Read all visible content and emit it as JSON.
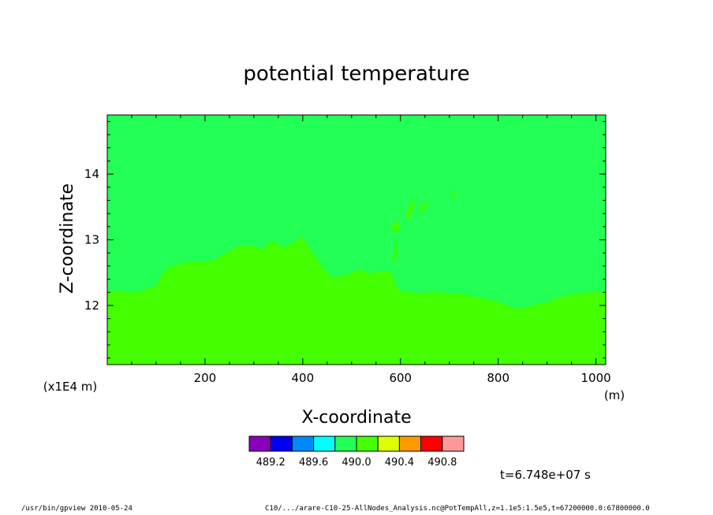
{
  "chart_data": {
    "type": "heatmap",
    "title": "potential temperature",
    "xlabel": "X-coordinate",
    "ylabel": "Z-coordinate",
    "x_unit": "(m)",
    "y_scale_label": "(x1E4 m)",
    "xlim": [
      0,
      1020
    ],
    "ylim": [
      11.1,
      14.9
    ],
    "x_ticks": [
      200,
      400,
      600,
      800,
      1000
    ],
    "x_tick_labels": [
      "200",
      "400",
      "600",
      "800",
      "1000"
    ],
    "y_ticks": [
      12,
      13,
      14
    ],
    "y_tick_labels": [
      "12",
      "13",
      "14"
    ],
    "field": {
      "upper_value_band": [
        489.8,
        490.0
      ],
      "lower_value_band": [
        490.0,
        490.2
      ],
      "upper_color": "#22ff55",
      "lower_color": "#44ff00",
      "boundary": {
        "x": [
          0,
          20,
          40,
          60,
          80,
          100,
          110,
          120,
          140,
          160,
          180,
          200,
          220,
          240,
          260,
          280,
          300,
          320,
          330,
          340,
          360,
          380,
          400,
          410,
          420,
          440,
          460,
          480,
          500,
          520,
          540,
          560,
          580,
          590,
          600,
          620,
          640,
          660,
          680,
          700,
          720,
          740,
          760,
          780,
          800,
          820,
          840,
          860,
          880,
          900,
          920,
          940,
          960,
          980,
          1000,
          1020
        ],
        "z": [
          12.22,
          12.22,
          12.2,
          12.2,
          12.25,
          12.3,
          12.45,
          12.55,
          12.62,
          12.65,
          12.68,
          12.66,
          12.7,
          12.78,
          12.88,
          12.92,
          12.9,
          12.85,
          12.95,
          12.98,
          12.88,
          12.95,
          13.05,
          12.92,
          12.8,
          12.6,
          12.42,
          12.45,
          12.5,
          12.55,
          12.48,
          12.52,
          12.52,
          12.3,
          12.22,
          12.2,
          12.18,
          12.2,
          12.2,
          12.18,
          12.18,
          12.15,
          12.12,
          12.1,
          12.05,
          12.0,
          11.95,
          11.98,
          12.02,
          12.05,
          12.12,
          12.15,
          12.18,
          12.2,
          12.2,
          12.22
        ]
      },
      "patches": [
        {
          "x": [
            580,
            595,
            600,
            588,
            580
          ],
          "z": [
            13.2,
            13.3,
            13.15,
            13.1,
            13.2
          ]
        },
        {
          "x": [
            610,
            622,
            630,
            618,
            610
          ],
          "z": [
            13.35,
            13.6,
            13.55,
            13.3,
            13.35
          ]
        },
        {
          "x": [
            640,
            650,
            655,
            645,
            640
          ],
          "z": [
            13.45,
            13.6,
            13.55,
            13.4,
            13.45
          ]
        },
        {
          "x": [
            585,
            592,
            595,
            588,
            585
          ],
          "z": [
            12.7,
            12.95,
            12.85,
            12.65,
            12.7
          ]
        },
        {
          "x": [
            705,
            710,
            712,
            707,
            705
          ],
          "z": [
            13.65,
            13.75,
            13.7,
            13.62,
            13.65
          ]
        }
      ]
    },
    "colorbar": {
      "colors": [
        "#8800bb",
        "#0000ee",
        "#0088ff",
        "#00ffff",
        "#22ff55",
        "#44ff00",
        "#ddff00",
        "#ff9900",
        "#ff0000",
        "#ff9999"
      ],
      "tick_labels": [
        "489.2",
        "489.6",
        "490.0",
        "490.4",
        "490.8"
      ]
    }
  },
  "time_label": "t=6.748e+07 s",
  "footer": {
    "left_text": "/usr/bin/gpview   2010-05-24",
    "right_text": "C10/.../arare-C10-25-AllNodes_Analysis.nc@PotTempAll,z=1.1e5:1.5e5,t=67200000.0:67800000.0"
  }
}
